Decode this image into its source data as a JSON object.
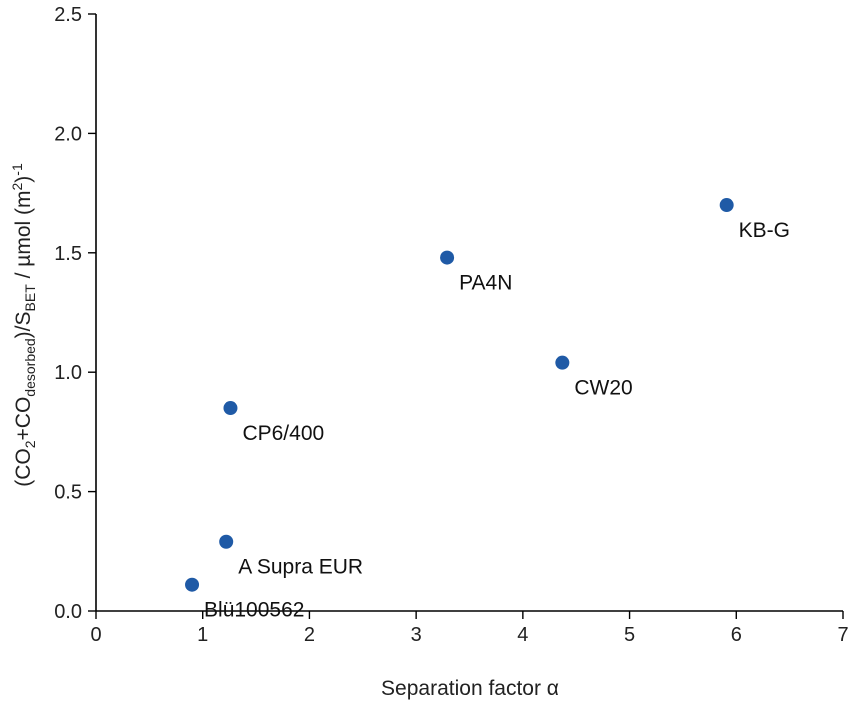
{
  "chart_data": {
    "type": "scatter",
    "title": "",
    "xlabel": "Separation factor α",
    "ylabel": {
      "prefix": "(CO",
      "sub1": "2",
      "mid1": "+CO",
      "sub2": "desorbed",
      "mid2": ")/S",
      "sub3": "BET",
      "mid3": " / µmol (m",
      "sup1": "2",
      "mid4": ")",
      "sup2": "-1"
    },
    "xlim": [
      0,
      7
    ],
    "ylim": [
      0,
      2.5
    ],
    "x_ticks": [
      "0",
      "1",
      "2",
      "3",
      "4",
      "5",
      "6",
      "7"
    ],
    "y_ticks": [
      "0.0",
      "0.5",
      "1.0",
      "1.5",
      "2.0",
      "2.5"
    ],
    "grid": false,
    "marker_color": "#1f5aa6",
    "points": [
      {
        "label": "Blü100562",
        "x": 0.9,
        "y": 0.11
      },
      {
        "label": "A Supra EUR",
        "x": 1.22,
        "y": 0.29
      },
      {
        "label": "CP6/400",
        "x": 1.26,
        "y": 0.85
      },
      {
        "label": "PA4N",
        "x": 3.29,
        "y": 1.48
      },
      {
        "label": "CW20",
        "x": 4.37,
        "y": 1.04
      },
      {
        "label": "KB-G",
        "x": 5.91,
        "y": 1.7
      }
    ]
  }
}
